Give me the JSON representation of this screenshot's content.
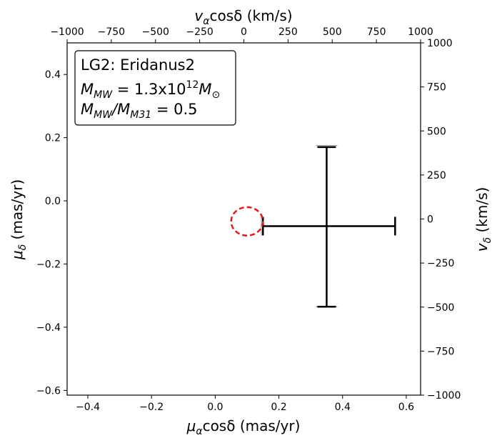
{
  "chart_data": {
    "type": "scatter",
    "title": "",
    "annotation_box": {
      "line1": "LG2: Eridanus2",
      "line2_main": "M",
      "line2_sub": "MW",
      "line2_rest": " = 1.3x10",
      "line2_sup": "12",
      "line2_end_main": "M",
      "line2_end_sub": "⊙",
      "line3_main": "M",
      "line3_sub": "MW",
      "line3_mid": "/M",
      "line3_sub2": "M31",
      "line3_rest": " = 0.5"
    },
    "bottom_axis": {
      "label_main": "μ",
      "label_sub": "α",
      "label_rest": "cosδ (mas/yr)",
      "range": [
        -0.465,
        0.645
      ],
      "ticks": [
        -0.4,
        -0.2,
        0.0,
        0.2,
        0.4,
        0.6
      ],
      "tick_labels": [
        "−0.4",
        "−0.2",
        "0.0",
        "0.2",
        "0.4",
        "0.6"
      ]
    },
    "left_axis": {
      "label_main": "μ",
      "label_sub": "δ",
      "label_rest": " (mas/yr)",
      "range": [
        -0.615,
        0.5
      ],
      "ticks": [
        -0.6,
        -0.4,
        -0.2,
        0.0,
        0.2,
        0.4
      ],
      "tick_labels": [
        "−0.6",
        "−0.4",
        "−0.2",
        "0.0",
        "0.2",
        "0.4"
      ]
    },
    "top_axis": {
      "label_main": "v",
      "label_sub": "α",
      "label_rest": "cosδ (km/s)",
      "range": [
        -1000,
        1000
      ],
      "ticks": [
        -1000,
        -750,
        -500,
        -250,
        0,
        250,
        500,
        750,
        1000
      ],
      "tick_labels": [
        "−1000",
        "−750",
        "−500",
        "−250",
        "0",
        "250",
        "500",
        "750",
        "1000"
      ]
    },
    "right_axis": {
      "label_main": "v",
      "label_sub": "δ",
      "label_rest": " (km/s)",
      "range": [
        -1000,
        1000
      ],
      "ticks": [
        -1000,
        -750,
        -500,
        -250,
        0,
        250,
        500,
        750,
        1000
      ],
      "tick_labels": [
        "−1000",
        "−750",
        "−500",
        "−250",
        "0",
        "250",
        "500",
        "750",
        "1000"
      ]
    },
    "measurement": {
      "x": 0.35,
      "y": -0.08,
      "x_err_low": 0.2,
      "x_err_high": 0.215,
      "y_err_low": 0.255,
      "y_err_high": 0.25,
      "color": "#000000",
      "gray_x_err": [
        0.145,
        0.565
      ],
      "gray_y_err": [
        -0.335,
        0.175
      ],
      "gray_color": "#888888"
    },
    "prediction_ellipse": {
      "center_x": 0.1,
      "center_y": -0.065,
      "radius_x": 0.05,
      "radius_y": 0.045,
      "color": "#e41a1c",
      "style": "dashed"
    },
    "grid": false
  }
}
